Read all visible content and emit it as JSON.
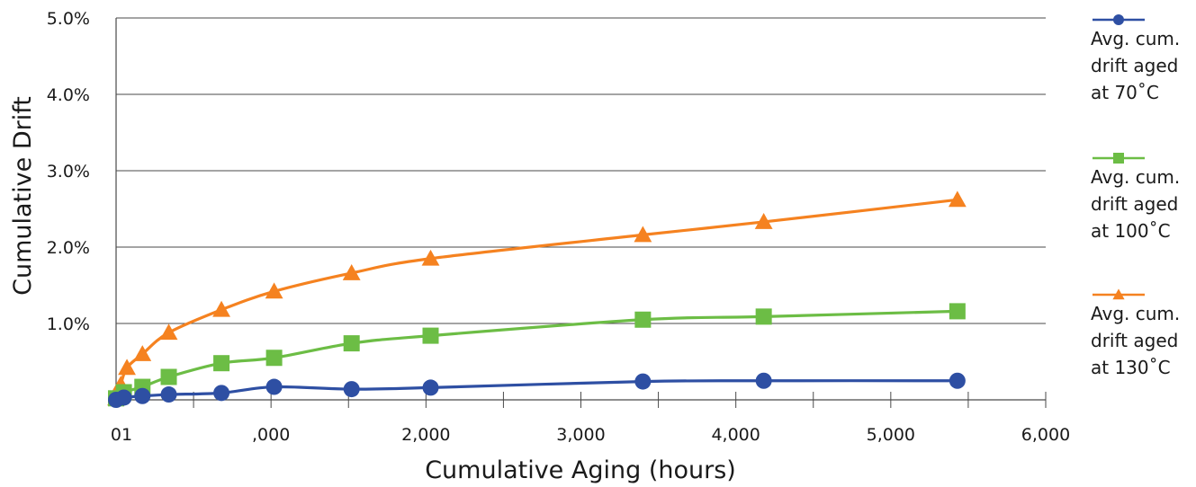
{
  "chart_data": {
    "type": "line",
    "title": "",
    "xlabel": "Cumulative Aging (hours)",
    "ylabel": "Cumulative Drift",
    "xlim": [
      0,
      6000
    ],
    "ylim": [
      0,
      5.0
    ],
    "x_tick_labels": [
      "01",
      ",000",
      "2,000",
      "3,000",
      "4,000",
      "5,000",
      "6,000"
    ],
    "y_tick_labels": [
      "1.0%",
      "2.0%",
      "3.0%",
      "4.0%",
      "5.0%"
    ],
    "grid": "horizontal",
    "legend_position": "right",
    "series": [
      {
        "name": "Avg. cum. drift aged at 70˚C",
        "legend_lines": [
          "Avg. cum.",
          "drift aged",
          "at 70˚C"
        ],
        "color": "#2e4fa3",
        "marker": "circle",
        "x": [
          0,
          50,
          170,
          340,
          680,
          1020,
          1520,
          2030,
          3400,
          4180,
          5430
        ],
        "y": [
          0.0,
          0.03,
          0.05,
          0.07,
          0.09,
          0.17,
          0.14,
          0.16,
          0.24,
          0.25,
          0.25
        ]
      },
      {
        "name": "Avg. cum. drift aged at 100˚C",
        "legend_lines": [
          "Avg. cum.",
          "drift aged",
          "at 100˚C"
        ],
        "color": "#6cbd45",
        "marker": "square",
        "x": [
          0,
          50,
          170,
          340,
          680,
          1020,
          1520,
          2030,
          3400,
          4180,
          5430
        ],
        "y": [
          0.02,
          0.1,
          0.17,
          0.3,
          0.48,
          0.55,
          0.74,
          0.84,
          1.05,
          1.09,
          1.16
        ]
      },
      {
        "name": "Avg. cum. drift aged at 130˚C",
        "legend_lines": [
          "Avg. cum.",
          "drift aged",
          "at 130˚C"
        ],
        "color": "#f58220",
        "marker": "triangle",
        "x": [
          0,
          30,
          70,
          170,
          340,
          680,
          1020,
          1520,
          2030,
          3400,
          4180,
          5430
        ],
        "y": [
          0.02,
          0.2,
          0.42,
          0.6,
          0.88,
          1.18,
          1.42,
          1.66,
          1.85,
          2.16,
          2.33,
          2.62
        ]
      }
    ]
  }
}
